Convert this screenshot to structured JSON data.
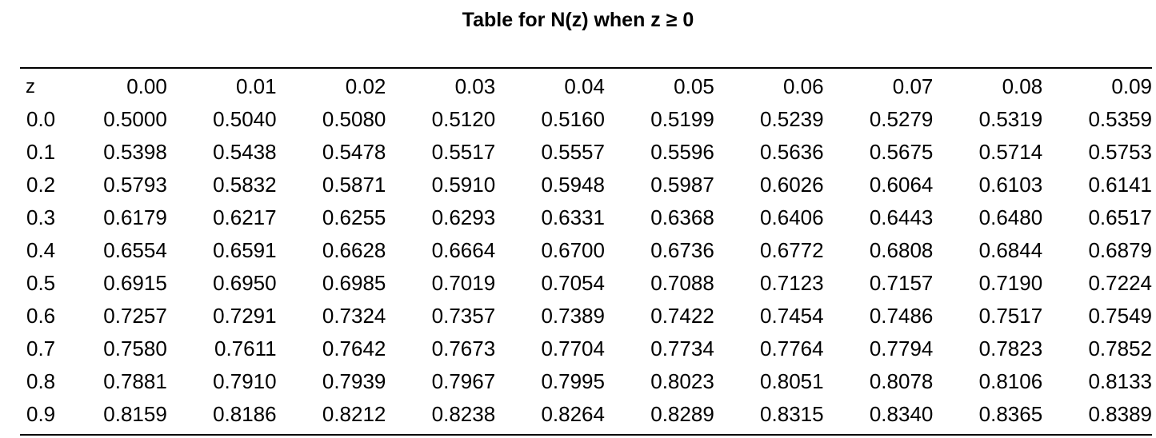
{
  "title": "Table for N(z) when z ≥ 0",
  "table": {
    "z_header": "z",
    "columns": [
      "0.00",
      "0.01",
      "0.02",
      "0.03",
      "0.04",
      "0.05",
      "0.06",
      "0.07",
      "0.08",
      "0.09"
    ],
    "rows": [
      {
        "z": "0.0",
        "values": [
          "0.5000",
          "0.5040",
          "0.5080",
          "0.5120",
          "0.5160",
          "0.5199",
          "0.5239",
          "0.5279",
          "0.5319",
          "0.5359"
        ]
      },
      {
        "z": "0.1",
        "values": [
          "0.5398",
          "0.5438",
          "0.5478",
          "0.5517",
          "0.5557",
          "0.5596",
          "0.5636",
          "0.5675",
          "0.5714",
          "0.5753"
        ]
      },
      {
        "z": "0.2",
        "values": [
          "0.5793",
          "0.5832",
          "0.5871",
          "0.5910",
          "0.5948",
          "0.5987",
          "0.6026",
          "0.6064",
          "0.6103",
          "0.6141"
        ]
      },
      {
        "z": "0.3",
        "values": [
          "0.6179",
          "0.6217",
          "0.6255",
          "0.6293",
          "0.6331",
          "0.6368",
          "0.6406",
          "0.6443",
          "0.6480",
          "0.6517"
        ]
      },
      {
        "z": "0.4",
        "values": [
          "0.6554",
          "0.6591",
          "0.6628",
          "0.6664",
          "0.6700",
          "0.6736",
          "0.6772",
          "0.6808",
          "0.6844",
          "0.6879"
        ]
      },
      {
        "z": "0.5",
        "values": [
          "0.6915",
          "0.6950",
          "0.6985",
          "0.7019",
          "0.7054",
          "0.7088",
          "0.7123",
          "0.7157",
          "0.7190",
          "0.7224"
        ]
      },
      {
        "z": "0.6",
        "values": [
          "0.7257",
          "0.7291",
          "0.7324",
          "0.7357",
          "0.7389",
          "0.7422",
          "0.7454",
          "0.7486",
          "0.7517",
          "0.7549"
        ]
      },
      {
        "z": "0.7",
        "values": [
          "0.7580",
          "0.7611",
          "0.7642",
          "0.7673",
          "0.7704",
          "0.7734",
          "0.7764",
          "0.7794",
          "0.7823",
          "0.7852"
        ]
      },
      {
        "z": "0.8",
        "values": [
          "0.7881",
          "0.7910",
          "0.7939",
          "0.7967",
          "0.7995",
          "0.8023",
          "0.8051",
          "0.8078",
          "0.8106",
          "0.8133"
        ]
      },
      {
        "z": "0.9",
        "values": [
          "0.8159",
          "0.8186",
          "0.8212",
          "0.8238",
          "0.8264",
          "0.8289",
          "0.8315",
          "0.8340",
          "0.8365",
          "0.8389"
        ]
      }
    ]
  }
}
